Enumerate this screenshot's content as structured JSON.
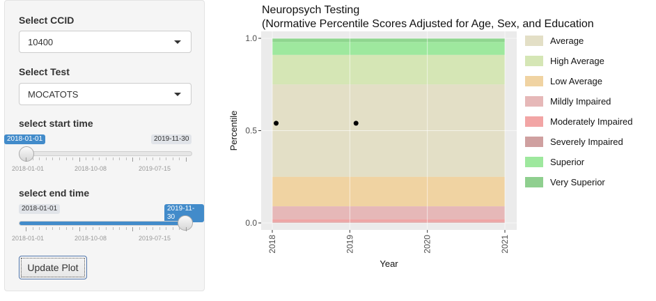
{
  "sidebar": {
    "ccid": {
      "label": "Select CCID",
      "value": "10400"
    },
    "test": {
      "label": "Select Test",
      "value": "MOCATOTS"
    },
    "start": {
      "label": "select start time",
      "value": "2018-01-01",
      "max_label": "2019-11-30",
      "ticks": [
        "2018-01-01",
        "2018-10-08",
        "2019-07-15"
      ]
    },
    "end": {
      "label": "select end time",
      "min_label": "2018-01-01",
      "value": "2019-11-30",
      "ticks": [
        "2018-01-01",
        "2018-10-08",
        "2019-07-15"
      ]
    },
    "update_button": "Update Plot"
  },
  "chart_data": {
    "type": "scatter",
    "title": "Neuropsych Testing",
    "subtitle": "(Normative Percentile Scores Adjusted for Age, Sex, and Education",
    "xlabel": "Year",
    "ylabel": "Percentile",
    "xlim": [
      2018,
      2021
    ],
    "ylim": [
      0,
      1
    ],
    "x_ticks": [
      "2018",
      "2019",
      "2020",
      "2021"
    ],
    "y_ticks": [
      "0.0",
      "0.5",
      "1.0"
    ],
    "points": [
      {
        "x": 2018.05,
        "y": 0.54
      },
      {
        "x": 2019.08,
        "y": 0.54
      }
    ],
    "bands": [
      {
        "name": "Very Superior",
        "from": 0.98,
        "to": 1.0,
        "color": "#8fd68f"
      },
      {
        "name": "Superior",
        "from": 0.91,
        "to": 0.98,
        "color": "#9ee89e"
      },
      {
        "name": "High Average",
        "from": 0.75,
        "to": 0.91,
        "color": "#d5e6b5"
      },
      {
        "name": "Average",
        "from": 0.25,
        "to": 0.75,
        "color": "#e3dfc6"
      },
      {
        "name": "Low Average",
        "from": 0.09,
        "to": 0.25,
        "color": "#f0d3a2"
      },
      {
        "name": "Mildly Impaired",
        "from": 0.02,
        "to": 0.09,
        "color": "#e6b8b8"
      },
      {
        "name": "Moderately Impaired",
        "from": 0.005,
        "to": 0.02,
        "color": "#eea5a5"
      },
      {
        "name": "Severely Impaired",
        "from": 0.0,
        "to": 0.005,
        "color": "#d9a3a3"
      }
    ],
    "legend": [
      {
        "name": "Average",
        "color": "#e3dfc6"
      },
      {
        "name": "High Average",
        "color": "#d5e6b5"
      },
      {
        "name": "Low Average",
        "color": "#f0d3a2"
      },
      {
        "name": "Mildly Impaired",
        "color": "#e6b8b8"
      },
      {
        "name": "Moderately Impaired",
        "color": "#f2a5a5"
      },
      {
        "name": "Severely Impaired",
        "color": "#cfa0a0"
      },
      {
        "name": "Superior",
        "color": "#9ee89e"
      },
      {
        "name": "Very Superior",
        "color": "#8fcf8f"
      }
    ],
    "legend_position": "right"
  }
}
